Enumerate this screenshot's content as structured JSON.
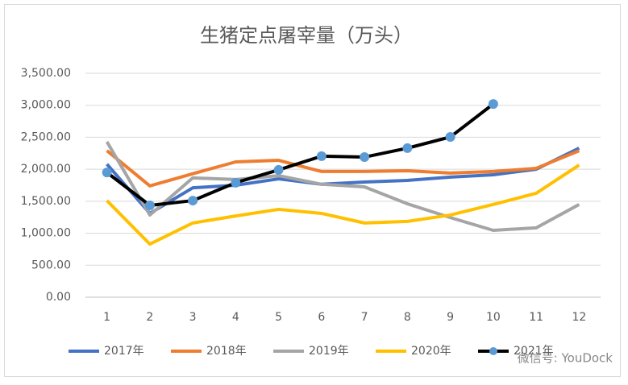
{
  "chart_data": {
    "type": "line",
    "title": "生猪定点屠宰量（万头）",
    "categories": [
      1,
      2,
      3,
      4,
      5,
      6,
      7,
      8,
      9,
      10,
      11,
      12
    ],
    "series": [
      {
        "name": "2017年",
        "color": "#4472c4",
        "values": [
          2080,
          1310,
          1710,
          1750,
          1850,
          1765,
          1800,
          1826,
          1877,
          1914,
          2000,
          2330
        ]
      },
      {
        "name": "2018年",
        "color": "#ed7d31",
        "values": [
          2290,
          1740,
          1930,
          2115,
          2140,
          1965,
          1965,
          1977,
          1940,
          1965,
          2015,
          2290
        ]
      },
      {
        "name": "2019年",
        "color": "#a5a5a5",
        "values": [
          2430,
          1285,
          1865,
          1840,
          1900,
          1765,
          1725,
          1460,
          1245,
          1045,
          1085,
          1450
        ]
      },
      {
        "name": "2020年",
        "color": "#ffc000",
        "values": [
          1510,
          830,
          1160,
          1270,
          1373,
          1310,
          1160,
          1185,
          1285,
          1450,
          1625,
          2065
        ]
      },
      {
        "name": "2021年",
        "color": "#000000",
        "marker_color": "#5b9bd5",
        "values": [
          1950,
          1435,
          1510,
          1790,
          1990,
          2205,
          2190,
          2330,
          2505,
          3020,
          null,
          null
        ]
      }
    ],
    "ylim": [
      0,
      3500
    ],
    "yticks": [
      {
        "value": 0,
        "label": "0.00"
      },
      {
        "value": 500,
        "label": "500.00"
      },
      {
        "value": 1000,
        "label": "1,000.00"
      },
      {
        "value": 1500,
        "label": "1,500.00"
      },
      {
        "value": 2000,
        "label": "2,000.00"
      },
      {
        "value": 2500,
        "label": "2,500.00"
      },
      {
        "value": 3000,
        "label": "3,000.00"
      },
      {
        "value": 3500,
        "label": "3,500.00"
      }
    ],
    "grid": true,
    "legend": "bottom",
    "annotation": "微信号: YouDock"
  }
}
